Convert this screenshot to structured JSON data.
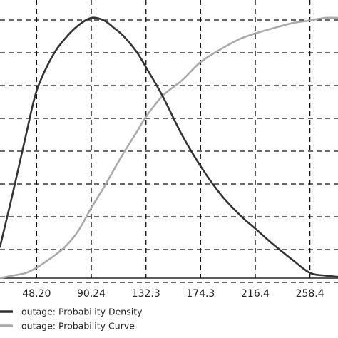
{
  "chart_data": {
    "type": "line",
    "title": "",
    "xlabel": "",
    "ylabel": "",
    "grid": true,
    "grid_style": "dashed",
    "legend_placement": "bottom",
    "xlim": [
      20,
      280
    ],
    "ylim": [
      0,
      1
    ],
    "x_tick_labels": [
      "48.20",
      "90.24",
      "132.3",
      "174.3",
      "216.4",
      "258.4"
    ],
    "x_tick_values": [
      48.2,
      90.24,
      132.3,
      174.3,
      216.4,
      258.4
    ],
    "y_gridlines": 9,
    "series": [
      {
        "name": "outage: Probability Density",
        "color": "#333333",
        "x": [
          20,
          30,
          40,
          48.2,
          60,
          70,
          80,
          90.24,
          100,
          108,
          115,
          125,
          132.3,
          145,
          160,
          174.3,
          190,
          205,
          216.4,
          230,
          245,
          258.4,
          270,
          280
        ],
        "values": [
          0.12,
          0.33,
          0.55,
          0.72,
          0.85,
          0.92,
          0.97,
          1.0,
          0.99,
          0.96,
          0.93,
          0.87,
          0.81,
          0.7,
          0.55,
          0.43,
          0.32,
          0.24,
          0.19,
          0.13,
          0.07,
          0.02,
          0.01,
          0.005
        ]
      },
      {
        "name": "outage: Probability Curve",
        "color": "#aaaaaa",
        "x": [
          20,
          30,
          40,
          48.2,
          60,
          70,
          80,
          90.24,
          100,
          108,
          115,
          125,
          132.3,
          145,
          160,
          174.3,
          190,
          205,
          216.4,
          230,
          245,
          258.4,
          270,
          280
        ],
        "values": [
          0.0,
          0.01,
          0.02,
          0.04,
          0.08,
          0.12,
          0.18,
          0.27,
          0.35,
          0.42,
          0.48,
          0.56,
          0.62,
          0.7,
          0.76,
          0.83,
          0.88,
          0.92,
          0.94,
          0.96,
          0.98,
          0.99,
          1.0,
          1.0
        ]
      }
    ]
  }
}
